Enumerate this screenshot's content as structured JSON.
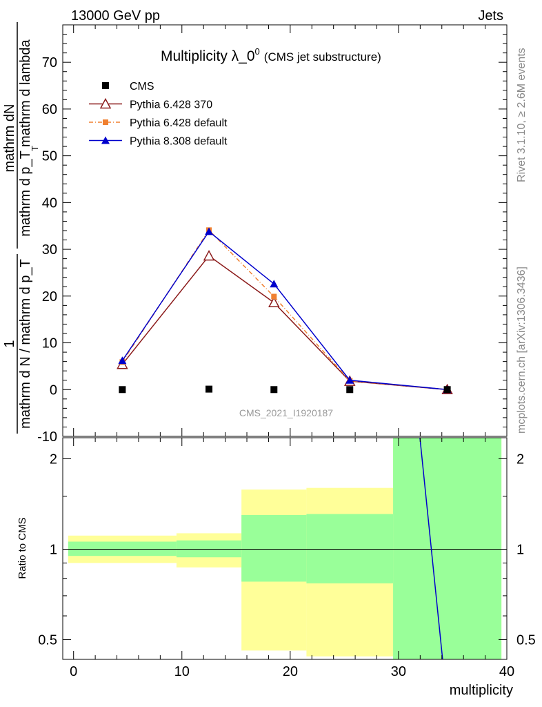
{
  "header": {
    "left": "13000 GeV pp",
    "right": "Jets"
  },
  "side_labels": {
    "rivet": "Rivet 3.1.10, ≥ 2.6M events",
    "mcplots": "mcplots.cern.ch [arXiv:1306.3436]"
  },
  "chart_data": [
    {
      "type": "line",
      "title_main": "Multiplicity λ_0",
      "title_sup": "0",
      "title_sub": "(CMS jet substructure)",
      "watermark": "CMS_2021_I1920187",
      "ylabel_parts": {
        "numerator": "mathrm dN",
        "denominator": "mathrm d p_T mathrm d lambda",
        "denominator_sub": "T",
        "prefix_numerator": "1",
        "prefix_denominator": "mathrm d N / mathrm d p_T"
      },
      "ylim": [
        -10,
        78
      ],
      "yticks": [
        -10,
        0,
        10,
        20,
        30,
        40,
        50,
        60,
        70
      ],
      "xlim": [
        -1,
        40
      ],
      "legend_position": "top-left",
      "series": [
        {
          "name": "CMS",
          "marker": "square",
          "color": "#000000",
          "x": [
            4.5,
            12.5,
            18.5,
            25.5,
            34.5
          ],
          "y": [
            0.0,
            0.1,
            0.0,
            0.0,
            0.0
          ]
        },
        {
          "name": "Pythia 6.428 370",
          "marker": "open-triangle",
          "color": "#8b1a1a",
          "x": [
            4.5,
            12.5,
            18.5,
            25.5,
            34.5
          ],
          "y": [
            5.4,
            28.6,
            18.6,
            1.8,
            0.0
          ]
        },
        {
          "name": "Pythia 6.428 default",
          "marker": "small-square",
          "color": "#f08030",
          "dashed": true,
          "x": [
            4.5,
            12.5,
            18.5,
            25.5,
            34.5
          ],
          "y": [
            5.9,
            34.1,
            19.9,
            1.9,
            0.0
          ]
        },
        {
          "name": "Pythia 8.308 default",
          "marker": "filled-triangle",
          "color": "#0000cc",
          "x": [
            4.5,
            12.5,
            18.5,
            25.5,
            34.5
          ],
          "y": [
            6.2,
            33.8,
            22.6,
            2.0,
            0.0
          ]
        }
      ]
    },
    {
      "type": "line",
      "ylabel": "Ratio to CMS",
      "xlabel": "multiplicity",
      "yscale": "log",
      "ylim": [
        0.43,
        2.35
      ],
      "yticks": [
        0.5,
        1,
        2
      ],
      "ytick_labels": [
        "0.5",
        "1",
        "2"
      ],
      "xlim": [
        -1,
        40
      ],
      "xticks": [
        0,
        10,
        20,
        30,
        40
      ],
      "xtick_labels": [
        "0",
        "10",
        "20",
        "30",
        "40"
      ],
      "bands": [
        {
          "x0": -0.5,
          "x1": 9.5,
          "green": [
            0.95,
            1.06
          ],
          "yellow": [
            0.9,
            1.11
          ]
        },
        {
          "x0": 9.5,
          "x1": 15.5,
          "green": [
            0.94,
            1.07
          ],
          "yellow": [
            0.87,
            1.13
          ]
        },
        {
          "x0": 15.5,
          "x1": 21.5,
          "green": [
            0.78,
            1.3
          ],
          "yellow": [
            0.46,
            1.58
          ]
        },
        {
          "x0": 21.5,
          "x1": 29.5,
          "green": [
            0.77,
            1.31
          ],
          "yellow": [
            0.44,
            1.6
          ]
        },
        {
          "x0": 29.5,
          "x1": 39.5,
          "green": [
            0.4,
            2.5
          ],
          "yellow": [
            0.4,
            2.5
          ]
        }
      ],
      "ratio_line": {
        "name": "Pythia 8.308 default",
        "color": "#0000cc",
        "x": [
          31.9,
          34.1
        ],
        "y": [
          2.5,
          0.42
        ]
      }
    }
  ]
}
